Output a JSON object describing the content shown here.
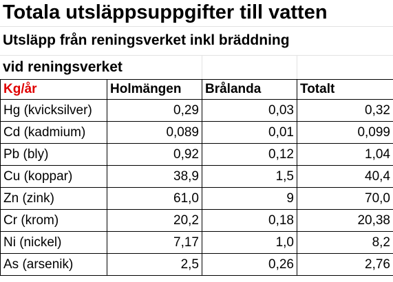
{
  "title": "Totala utsläppsuppgifter till vatten",
  "subtitle_line1": "Utsläpp från reningsverket inkl bräddning",
  "subtitle_line2": "vid reningsverket",
  "table": {
    "headers": [
      "Kg/år",
      "Holmängen",
      "Brålanda",
      "Totalt"
    ],
    "rows": [
      [
        "Hg (kvicksilver)",
        "0,29",
        "0,03",
        "0,32"
      ],
      [
        "Cd (kadmium)",
        "0,089",
        "0,01",
        "0,099"
      ],
      [
        "Pb (bly)",
        "0,92",
        "0,12",
        "1,04"
      ],
      [
        "Cu (koppar)",
        "38,9",
        "1,5",
        "40,4"
      ],
      [
        "Zn (zink)",
        "61,0",
        "9",
        "70,0"
      ],
      [
        "Cr (krom)",
        "20,2",
        "0,18",
        "20,38"
      ],
      [
        "Ni (nickel)",
        "7,17",
        "1,0",
        "8,2"
      ],
      [
        "As (arsenik)",
        "2,5",
        "0,26",
        "2,76"
      ]
    ]
  },
  "colors": {
    "unit_header": "#e00000",
    "grid": "#000000"
  }
}
